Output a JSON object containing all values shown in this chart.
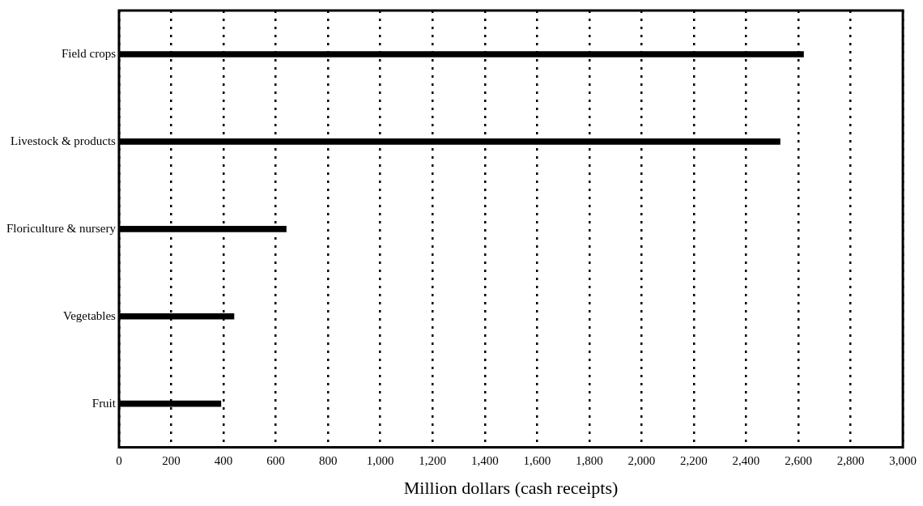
{
  "chart_data": {
    "type": "bar",
    "orientation": "horizontal",
    "xlabel": "Million dollars (cash receipts)",
    "categories": [
      "Field crops",
      "Livestock & products",
      "Floriculture & nursery",
      "Vegetables",
      "Fruit"
    ],
    "values": [
      2620,
      2530,
      640,
      440,
      390
    ],
    "color": "#000000",
    "xlim": [
      0,
      3000
    ],
    "xticks": [
      0,
      200,
      400,
      600,
      800,
      {
        "value": 1000,
        "label": "1,000"
      },
      {
        "value": 1200,
        "label": "1,200"
      },
      {
        "value": 1400,
        "label": "1,400"
      },
      {
        "value": 1600,
        "label": "1,600"
      },
      {
        "value": 1800,
        "label": "1,800"
      },
      {
        "value": 2000,
        "label": "2,000"
      },
      {
        "value": 2200,
        "label": "2,200"
      },
      {
        "value": 2400,
        "label": "2,400"
      },
      {
        "value": 2600,
        "label": "2,600"
      },
      {
        "value": 2800,
        "label": "2,800"
      },
      {
        "value": 3000,
        "label": "3,000"
      }
    ],
    "grid": "x"
  }
}
